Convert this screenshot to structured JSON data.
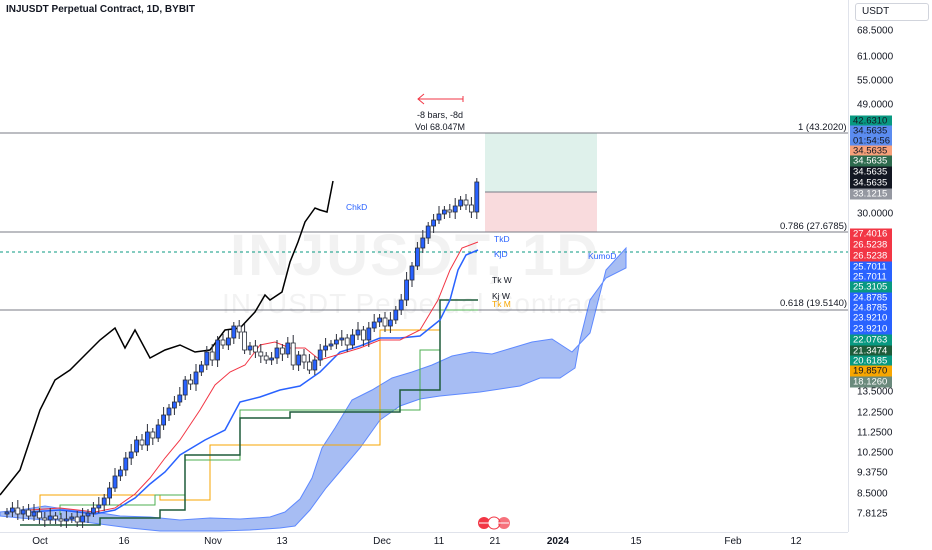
{
  "header": {
    "symbol_title": "INJUSDT Perpetual Contract, 1D, BYBIT",
    "currency": "USDT"
  },
  "watermark": {
    "ticker": "INJUSDT, 1D",
    "description": "INJUSDT Perpetual Contract"
  },
  "measure_annotation": {
    "bars_text": "-8 bars, -8d",
    "vol_text": "Vol 68.047M"
  },
  "fib_levels": [
    {
      "text": "1 (43.2020)",
      "value": 43.202
    },
    {
      "text": "0.786 (27.6785)",
      "value": 27.6785
    },
    {
      "text": "0.618 (19.5140)",
      "value": 19.514
    }
  ],
  "indicator_labels": {
    "tk_d": "TkD",
    "kj_d": "KjD",
    "tk_w": "Tk W",
    "kj_w": "Kj W",
    "tk_m": "Tk M",
    "chikou": "ChkD",
    "kumo": "KumoD"
  },
  "price_axis": {
    "ticks": [
      {
        "text": "68.5000",
        "value": 68.5
      },
      {
        "text": "61.0000",
        "value": 61.0
      },
      {
        "text": "55.0000",
        "value": 55.0
      },
      {
        "text": "49.0000",
        "value": 49.0
      },
      {
        "text": "30.0000",
        "value": 30.0
      },
      {
        "text": "13.5000",
        "value": 13.5
      },
      {
        "text": "12.2500",
        "value": 12.25
      },
      {
        "text": "11.2500",
        "value": 11.25
      },
      {
        "text": "10.2500",
        "value": 10.25
      },
      {
        "text": "9.3750",
        "value": 9.375
      },
      {
        "text": "8.5000",
        "value": 8.5
      },
      {
        "text": "7.8125",
        "value": 7.8125
      }
    ],
    "tags": [
      {
        "text": "42.6310",
        "bg": "#089981",
        "fg": "light"
      },
      {
        "text": "34.5635",
        "bg": "#5b8cf0",
        "fg": "light"
      },
      {
        "text": "01:54:56",
        "bg": "#5b8cf0",
        "fg": "light"
      },
      {
        "text": "34.5635",
        "bg": "#f7a07a",
        "fg": "light"
      },
      {
        "text": "34.5635",
        "bg": "#2e6b4e",
        "fg": "dark"
      },
      {
        "text": "34.5635",
        "bg": "#131722",
        "fg": "dark"
      },
      {
        "text": "34.5635",
        "bg": "#131722",
        "fg": "dark"
      },
      {
        "text": "33.1215",
        "bg": "#9598a1",
        "fg": "dark"
      },
      {
        "text": "27.4016",
        "bg": "#f23645",
        "fg": "dark"
      },
      {
        "text": "26.5238",
        "bg": "#f23645",
        "fg": "dark"
      },
      {
        "text": "26.5238",
        "bg": "#f23645",
        "fg": "dark"
      },
      {
        "text": "25.7011",
        "bg": "#2962ff",
        "fg": "dark"
      },
      {
        "text": "25.7011",
        "bg": "#2962ff",
        "fg": "dark"
      },
      {
        "text": "25.3105",
        "bg": "#089981",
        "fg": "dark"
      },
      {
        "text": "24.8785",
        "bg": "#2962ff",
        "fg": "dark"
      },
      {
        "text": "24.8785",
        "bg": "#2962ff",
        "fg": "dark"
      },
      {
        "text": "23.9210",
        "bg": "#2962ff",
        "fg": "dark"
      },
      {
        "text": "23.9210",
        "bg": "#2962ff",
        "fg": "dark"
      },
      {
        "text": "22.0763",
        "bg": "#089981",
        "fg": "dark"
      },
      {
        "text": "21.3474",
        "bg": "#1e5c3a",
        "fg": "dark"
      },
      {
        "text": "20.6185",
        "bg": "#089981",
        "fg": "dark"
      },
      {
        "text": "19.8570",
        "bg": "#f7a600",
        "fg": "light"
      },
      {
        "text": "18.1260",
        "bg": "#6a8a7c",
        "fg": "dark"
      }
    ]
  },
  "time_axis": {
    "ticks": [
      {
        "text": "Oct",
        "bold": false
      },
      {
        "text": "16",
        "bold": false
      },
      {
        "text": "Nov",
        "bold": false
      },
      {
        "text": "13",
        "bold": false
      },
      {
        "text": "Dec",
        "bold": false
      },
      {
        "text": "11",
        "bold": false
      },
      {
        "text": "21",
        "bold": false
      },
      {
        "text": "2024",
        "bold": true
      },
      {
        "text": "15",
        "bold": false
      },
      {
        "text": "Feb",
        "bold": false
      },
      {
        "text": "12",
        "bold": false
      }
    ]
  },
  "colors": {
    "candle_up": "#2962ff",
    "chikou": "#000000",
    "tenkan_d": "#f23645",
    "kijun_d": "#2962ff",
    "kumo_fill": "#8aa8f0",
    "tenkan_w": "#4caf50",
    "kijun_w": "#1e5c3a",
    "tenkan_m": "#f7a600",
    "profit_zone": "#d4ece4",
    "loss_zone": "#f7d2d5",
    "measure_arrow": "#f23645"
  }
}
